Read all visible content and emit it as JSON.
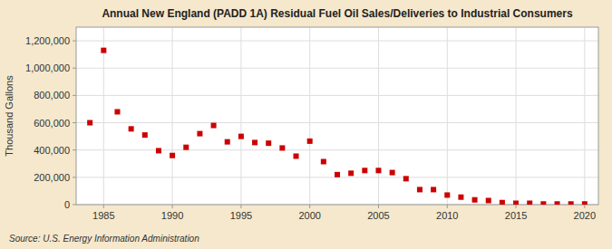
{
  "chart_data": {
    "type": "scatter",
    "title": "Annual New England (PADD 1A) Residual Fuel Oil Sales/Deliveries to Industrial Consumers",
    "ylabel": "Thousand Gallons",
    "source": "Source: U.S. Energy Information Administration",
    "x": [
      1984,
      1985,
      1986,
      1987,
      1988,
      1989,
      1990,
      1991,
      1992,
      1993,
      1994,
      1995,
      1996,
      1997,
      1998,
      1999,
      2000,
      2001,
      2002,
      2003,
      2004,
      2005,
      2006,
      2007,
      2008,
      2009,
      2010,
      2011,
      2012,
      2013,
      2014,
      2015,
      2016,
      2017,
      2018,
      2019,
      2020
    ],
    "values": [
      600000,
      1130000,
      680000,
      555000,
      510000,
      395000,
      360000,
      420000,
      520000,
      580000,
      460000,
      500000,
      455000,
      450000,
      415000,
      355000,
      465000,
      315000,
      220000,
      230000,
      250000,
      250000,
      235000,
      190000,
      110000,
      110000,
      70000,
      55000,
      35000,
      30000,
      15000,
      10000,
      10000,
      5000,
      5000,
      5000,
      5000
    ],
    "color": "#cc0000",
    "marker": "square",
    "xlim": [
      1983,
      2021
    ],
    "ylim": [
      0,
      1300000
    ],
    "xticks": [
      1985,
      1990,
      1995,
      2000,
      2005,
      2010,
      2015,
      2020
    ],
    "yticks": [
      0,
      {
        "value": 200000,
        "label": "200,000"
      },
      {
        "value": 400000,
        "label": "400,000"
      },
      {
        "value": 600000,
        "label": "600,000"
      },
      {
        "value": 800000,
        "label": "800,000"
      },
      {
        "value": 1000000,
        "label": "1,000,000"
      },
      {
        "value": 1200000,
        "label": "1,200,000"
      }
    ],
    "grid": true
  }
}
